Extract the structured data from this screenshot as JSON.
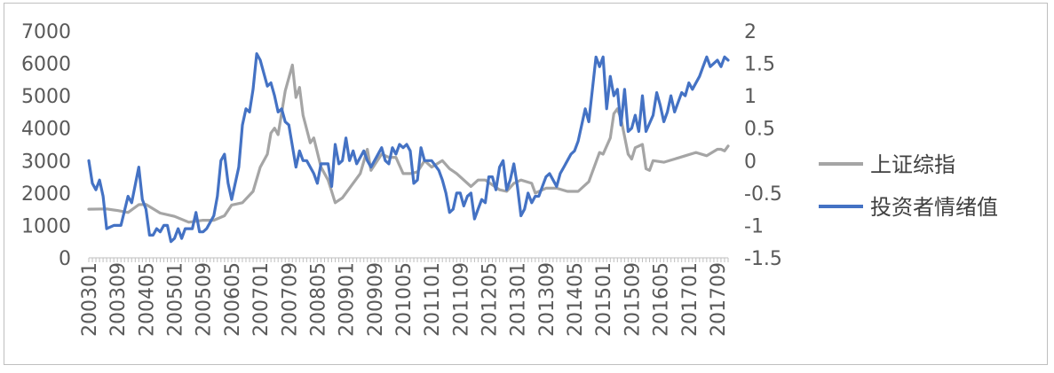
{
  "chart_data": {
    "type": "line",
    "title": "",
    "xlabel": "",
    "ylabel": "",
    "x_start": "200301",
    "x_end": "201712",
    "x_ticks": [
      "200301",
      "200309",
      "200405",
      "200501",
      "200509",
      "200605",
      "200701",
      "200709",
      "200805",
      "200901",
      "200909",
      "201005",
      "201101",
      "201109",
      "201205",
      "201301",
      "201309",
      "201405",
      "201501",
      "201509",
      "201605",
      "201701",
      "201709"
    ],
    "y_left_ticks": [
      "0",
      "1000",
      "2000",
      "3000",
      "4000",
      "5000",
      "6000",
      "7000"
    ],
    "y_left_range": [
      0,
      7000
    ],
    "y_right_ticks": [
      "-1.5",
      "-1",
      "-0.5",
      "0",
      "0.5",
      "1",
      "1.5",
      "2"
    ],
    "y_right_range": [
      -1.5,
      2
    ],
    "grid": false,
    "legend_position": "right",
    "series": [
      {
        "name": "上证综指",
        "axis": "left",
        "color": "#a5a5a5",
        "knots": [
          [
            "200301",
            1500
          ],
          [
            "200306",
            1510
          ],
          [
            "200309",
            1460
          ],
          [
            "200312",
            1400
          ],
          [
            "200403",
            1640
          ],
          [
            "200405",
            1650
          ],
          [
            "200409",
            1380
          ],
          [
            "200501",
            1280
          ],
          [
            "200505",
            1100
          ],
          [
            "200509",
            1160
          ],
          [
            "200512",
            1160
          ],
          [
            "200603",
            1300
          ],
          [
            "200605",
            1630
          ],
          [
            "200608",
            1700
          ],
          [
            "200611",
            2050
          ],
          [
            "200701",
            2800
          ],
          [
            "200703",
            3200
          ],
          [
            "200704",
            3850
          ],
          [
            "200705",
            4000
          ],
          [
            "200706",
            3800
          ],
          [
            "200708",
            5150
          ],
          [
            "200710",
            5950
          ],
          [
            "200711",
            4950
          ],
          [
            "200712",
            5260
          ],
          [
            "200801",
            4400
          ],
          [
            "200803",
            3550
          ],
          [
            "200804",
            3700
          ],
          [
            "200806",
            2800
          ],
          [
            "200808",
            2400
          ],
          [
            "200810",
            1700
          ],
          [
            "200812",
            1850
          ],
          [
            "200902",
            2150
          ],
          [
            "200905",
            2600
          ],
          [
            "200907",
            3350
          ],
          [
            "200908",
            2700
          ],
          [
            "200911",
            3200
          ],
          [
            "201001",
            3100
          ],
          [
            "201003",
            3100
          ],
          [
            "201005",
            2600
          ],
          [
            "201007",
            2600
          ],
          [
            "201009",
            2650
          ],
          [
            "201011",
            3000
          ],
          [
            "201101",
            2800
          ],
          [
            "201104",
            3000
          ],
          [
            "201106",
            2750
          ],
          [
            "201108",
            2600
          ],
          [
            "201110",
            2400
          ],
          [
            "201112",
            2200
          ],
          [
            "201202",
            2400
          ],
          [
            "201204",
            2400
          ],
          [
            "201206",
            2250
          ],
          [
            "201208",
            2100
          ],
          [
            "201210",
            2050
          ],
          [
            "201212",
            2300
          ],
          [
            "201302",
            2400
          ],
          [
            "201305",
            2300
          ],
          [
            "201306",
            2000
          ],
          [
            "201309",
            2150
          ],
          [
            "201312",
            2150
          ],
          [
            "201403",
            2050
          ],
          [
            "201406",
            2050
          ],
          [
            "201409",
            2350
          ],
          [
            "201412",
            3250
          ],
          [
            "201501",
            3200
          ],
          [
            "201503",
            3700
          ],
          [
            "201504",
            4450
          ],
          [
            "201505",
            4600
          ],
          [
            "201506",
            4300
          ],
          [
            "201508",
            3200
          ],
          [
            "201509",
            3050
          ],
          [
            "201510",
            3400
          ],
          [
            "201512",
            3500
          ],
          [
            "201601",
            2750
          ],
          [
            "201602",
            2700
          ],
          [
            "201603",
            3000
          ],
          [
            "201606",
            2950
          ],
          [
            "201609",
            3050
          ],
          [
            "201612",
            3150
          ],
          [
            "201703",
            3250
          ],
          [
            "201706",
            3150
          ],
          [
            "201709",
            3350
          ],
          [
            "201710",
            3350
          ],
          [
            "201711",
            3300
          ],
          [
            "201712",
            3450
          ]
        ]
      },
      {
        "name": "投资者情绪值",
        "axis": "right",
        "color": "#4472c4",
        "knots": [
          [
            "200301",
            0
          ],
          [
            "200302",
            -0.35
          ],
          [
            "200303",
            -0.45
          ],
          [
            "200304",
            -0.3
          ],
          [
            "200305",
            -0.55
          ],
          [
            "200306",
            -1.05
          ],
          [
            "200308",
            -1.0
          ],
          [
            "200310",
            -1.0
          ],
          [
            "200312",
            -0.55
          ],
          [
            "200401",
            -0.65
          ],
          [
            "200403",
            -0.1
          ],
          [
            "200404",
            -0.6
          ],
          [
            "200405",
            -0.75
          ],
          [
            "200406",
            -1.15
          ],
          [
            "200407",
            -1.15
          ],
          [
            "200408",
            -1.05
          ],
          [
            "200409",
            -1.1
          ],
          [
            "200410",
            -1.0
          ],
          [
            "200411",
            -1.0
          ],
          [
            "200412",
            -1.25
          ],
          [
            "200501",
            -1.2
          ],
          [
            "200502",
            -1.05
          ],
          [
            "200503",
            -1.2
          ],
          [
            "200504",
            -1.05
          ],
          [
            "200506",
            -1.05
          ],
          [
            "200507",
            -0.8
          ],
          [
            "200508",
            -1.1
          ],
          [
            "200509",
            -1.1
          ],
          [
            "200510",
            -1.05
          ],
          [
            "200512",
            -0.85
          ],
          [
            "200601",
            -0.55
          ],
          [
            "200602",
            0.0
          ],
          [
            "200603",
            0.1
          ],
          [
            "200604",
            -0.35
          ],
          [
            "200605",
            -0.6
          ],
          [
            "200607",
            -0.1
          ],
          [
            "200608",
            0.55
          ],
          [
            "200609",
            0.8
          ],
          [
            "200610",
            0.75
          ],
          [
            "200611",
            1.1
          ],
          [
            "200612",
            1.65
          ],
          [
            "200701",
            1.55
          ],
          [
            "200703",
            1.15
          ],
          [
            "200704",
            1.2
          ],
          [
            "200705",
            1.0
          ],
          [
            "200706",
            0.75
          ],
          [
            "200707",
            0.8
          ],
          [
            "200708",
            0.6
          ],
          [
            "200709",
            0.55
          ],
          [
            "200711",
            -0.1
          ],
          [
            "200712",
            0.15
          ],
          [
            "200801",
            0.0
          ],
          [
            "200802",
            0.0
          ],
          [
            "200804",
            -0.2
          ],
          [
            "200805",
            -0.35
          ],
          [
            "200806",
            -0.05
          ],
          [
            "200808",
            -0.05
          ],
          [
            "200809",
            -0.4
          ],
          [
            "200810",
            0.25
          ],
          [
            "200811",
            -0.05
          ],
          [
            "200812",
            0.0
          ],
          [
            "200901",
            0.35
          ],
          [
            "200902",
            0.0
          ],
          [
            "200903",
            0.15
          ],
          [
            "200904",
            -0.05
          ],
          [
            "200905",
            0.05
          ],
          [
            "200906",
            0.15
          ],
          [
            "200907",
            0.0
          ],
          [
            "200908",
            -0.1
          ],
          [
            "200909",
            0.0
          ],
          [
            "200911",
            0.2
          ],
          [
            "200912",
            0.0
          ],
          [
            "201001",
            -0.05
          ],
          [
            "201002",
            0.2
          ],
          [
            "201003",
            0.1
          ],
          [
            "201004",
            0.25
          ],
          [
            "201005",
            0.2
          ],
          [
            "201006",
            0.25
          ],
          [
            "201007",
            0.15
          ],
          [
            "201008",
            -0.35
          ],
          [
            "201009",
            -0.3
          ],
          [
            "201010",
            0.2
          ],
          [
            "201011",
            0.0
          ],
          [
            "201101",
            0.0
          ],
          [
            "201103",
            -0.15
          ],
          [
            "201104",
            -0.3
          ],
          [
            "201105",
            -0.5
          ],
          [
            "201106",
            -0.8
          ],
          [
            "201107",
            -0.75
          ],
          [
            "201108",
            -0.5
          ],
          [
            "201109",
            -0.5
          ],
          [
            "201110",
            -0.7
          ],
          [
            "201111",
            -0.55
          ],
          [
            "201112",
            -0.5
          ],
          [
            "201201",
            -0.9
          ],
          [
            "201202",
            -0.75
          ],
          [
            "201203",
            -0.6
          ],
          [
            "201204",
            -0.65
          ],
          [
            "201205",
            -0.25
          ],
          [
            "201206",
            -0.25
          ],
          [
            "201207",
            -0.45
          ],
          [
            "201208",
            -0.1
          ],
          [
            "201209",
            0.0
          ],
          [
            "201210",
            -0.45
          ],
          [
            "201211",
            -0.3
          ],
          [
            "201212",
            -0.05
          ],
          [
            "201301",
            -0.4
          ],
          [
            "201302",
            -0.85
          ],
          [
            "201303",
            -0.75
          ],
          [
            "201304",
            -0.5
          ],
          [
            "201305",
            -0.65
          ],
          [
            "201306",
            -0.55
          ],
          [
            "201307",
            -0.55
          ],
          [
            "201308",
            -0.4
          ],
          [
            "201309",
            -0.25
          ],
          [
            "201310",
            -0.2
          ],
          [
            "201311",
            -0.3
          ],
          [
            "201312",
            -0.4
          ],
          [
            "201401",
            -0.2
          ],
          [
            "201402",
            -0.1
          ],
          [
            "201403",
            0.0
          ],
          [
            "201404",
            0.1
          ],
          [
            "201405",
            0.15
          ],
          [
            "201406",
            0.3
          ],
          [
            "201408",
            0.8
          ],
          [
            "201409",
            0.6
          ],
          [
            "201411",
            1.6
          ],
          [
            "201412",
            1.45
          ],
          [
            "201501",
            1.6
          ],
          [
            "201502",
            0.8
          ],
          [
            "201503",
            1.3
          ],
          [
            "201504",
            1.0
          ],
          [
            "201505",
            1.1
          ],
          [
            "201506",
            0.55
          ],
          [
            "201507",
            1.1
          ],
          [
            "201508",
            0.45
          ],
          [
            "201509",
            0.5
          ],
          [
            "201510",
            0.7
          ],
          [
            "201511",
            0.45
          ],
          [
            "201512",
            1.0
          ],
          [
            "201601",
            0.45
          ],
          [
            "201603",
            0.7
          ],
          [
            "201604",
            1.05
          ],
          [
            "201605",
            0.85
          ],
          [
            "201606",
            0.6
          ],
          [
            "201607",
            0.75
          ],
          [
            "201608",
            1.0
          ],
          [
            "201609",
            0.75
          ],
          [
            "201610",
            0.9
          ],
          [
            "201611",
            1.05
          ],
          [
            "201612",
            1.0
          ],
          [
            "201701",
            1.2
          ],
          [
            "201702",
            1.1
          ],
          [
            "201704",
            1.3
          ],
          [
            "201705",
            1.45
          ],
          [
            "201706",
            1.6
          ],
          [
            "201707",
            1.45
          ],
          [
            "201709",
            1.55
          ],
          [
            "201710",
            1.45
          ],
          [
            "201711",
            1.6
          ],
          [
            "201712",
            1.55
          ]
        ]
      }
    ]
  }
}
